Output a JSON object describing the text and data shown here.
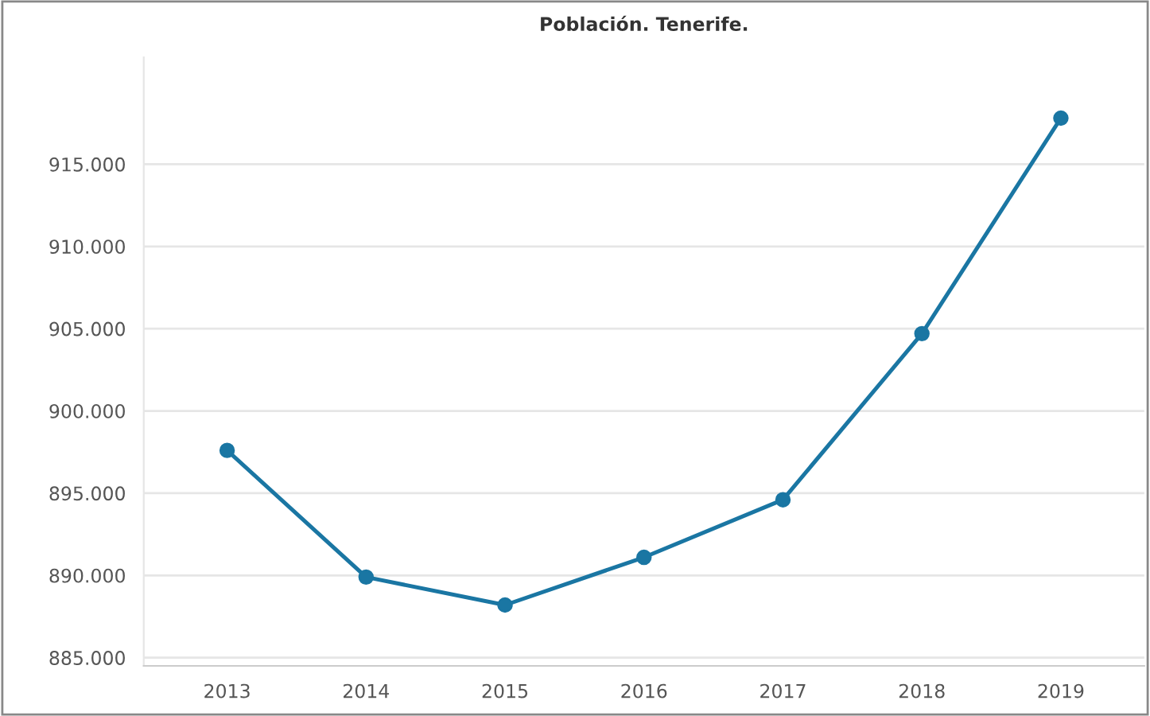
{
  "chart_data": {
    "type": "line",
    "title": "Población. Tenerife.",
    "categories": [
      "2013",
      "2014",
      "2015",
      "2016",
      "2017",
      "2018",
      "2019"
    ],
    "series": [
      {
        "color": "#1a76a3",
        "values": [
          897600,
          889900,
          888200,
          891100,
          894600,
          904700,
          917800
        ]
      }
    ],
    "ylim": [
      884500,
      921500
    ],
    "yticks": [
      {
        "value": 885000,
        "label": "885.000"
      },
      {
        "value": 890000,
        "label": "890.000"
      },
      {
        "value": 895000,
        "label": "895.000"
      },
      {
        "value": 900000,
        "label": "900.000"
      },
      {
        "value": 905000,
        "label": "905.000"
      },
      {
        "value": 910000,
        "label": "910.000"
      },
      {
        "value": 915000,
        "label": "915.000"
      }
    ],
    "grid": "y",
    "marker": "circle",
    "line_style": "solid",
    "legend": false
  }
}
